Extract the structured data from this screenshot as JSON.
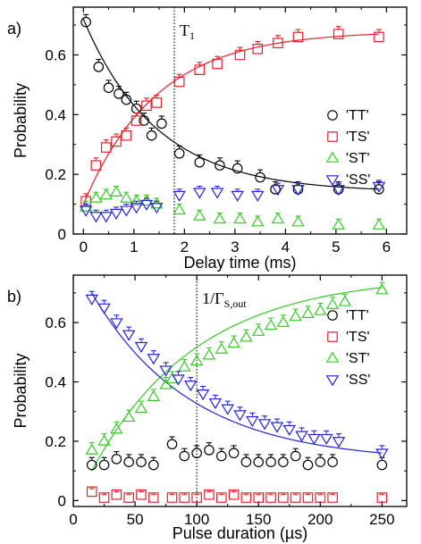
{
  "figure": {
    "panels": [
      "a)",
      "b)"
    ]
  },
  "colors": {
    "TT": "#000000",
    "TS": "#e8202a",
    "ST": "#33cc22",
    "SS": "#2222dd",
    "vline": "#000000"
  },
  "chart_data": [
    {
      "type": "scatter",
      "panel_label": "a)",
      "xlabel": "Delay time (ms)",
      "ylabel": "Probability",
      "xlim": [
        -0.2,
        6.4
      ],
      "ylim": [
        0,
        0.76
      ],
      "xticks": [
        0,
        1,
        2,
        3,
        4,
        5,
        6
      ],
      "yticks": [
        0,
        0.2,
        0.4,
        0.6
      ],
      "ytick_labels": [
        "0",
        "0.2",
        "0.4",
        "0.6"
      ],
      "grid": false,
      "legend_position": "center-right",
      "annotation": {
        "text": "T",
        "sub": "1",
        "x": 1.8
      },
      "series": [
        {
          "name": "'TT'",
          "marker": "circle",
          "color_key": "TT",
          "x": [
            0.05,
            0.3,
            0.5,
            0.7,
            0.85,
            1.05,
            1.2,
            1.35,
            1.55,
            1.9,
            2.3,
            2.7,
            3.05,
            3.5,
            3.8,
            4.25,
            5.05,
            5.85
          ],
          "y": [
            0.71,
            0.56,
            0.49,
            0.47,
            0.45,
            0.42,
            0.38,
            0.33,
            0.37,
            0.27,
            0.24,
            0.23,
            0.22,
            0.19,
            0.15,
            0.15,
            0.15,
            0.15
          ],
          "err": 0.025,
          "fit": {
            "type": "exp",
            "y0": 0.72,
            "yinf": 0.14,
            "tau": 1.45
          }
        },
        {
          "name": "'TS'",
          "marker": "square",
          "color_key": "TS",
          "x": [
            0.05,
            0.25,
            0.45,
            0.65,
            0.85,
            1.05,
            1.25,
            1.45,
            1.9,
            2.3,
            2.65,
            3.1,
            3.45,
            3.85,
            4.25,
            5.05,
            5.85
          ],
          "y": [
            0.11,
            0.23,
            0.29,
            0.31,
            0.33,
            0.38,
            0.43,
            0.44,
            0.51,
            0.55,
            0.57,
            0.6,
            0.62,
            0.64,
            0.66,
            0.67,
            0.66
          ],
          "err": 0.025,
          "fit": {
            "type": "exp",
            "y0": 0.1,
            "yinf": 0.68,
            "tau": 1.45
          }
        },
        {
          "name": "'ST'",
          "marker": "triangle-up",
          "color_key": "ST",
          "x": [
            0.05,
            0.25,
            0.45,
            0.65,
            0.85,
            1.05,
            1.25,
            1.45,
            1.9,
            2.3,
            2.7,
            3.1,
            3.45,
            3.85,
            4.25,
            5.05,
            5.85
          ],
          "y": [
            0.09,
            0.12,
            0.13,
            0.14,
            0.12,
            0.11,
            0.11,
            0.1,
            0.08,
            0.06,
            0.05,
            0.05,
            0.04,
            0.05,
            0.04,
            0.03,
            0.03
          ],
          "err": 0.02
        },
        {
          "name": "'SS'",
          "marker": "triangle-down",
          "color_key": "SS",
          "x": [
            0.05,
            0.25,
            0.45,
            0.65,
            0.85,
            1.05,
            1.25,
            1.45,
            1.9,
            2.3,
            2.65,
            3.05,
            3.45,
            3.85,
            4.25,
            5.05,
            5.85
          ],
          "y": [
            0.08,
            0.06,
            0.06,
            0.07,
            0.08,
            0.09,
            0.1,
            0.09,
            0.13,
            0.14,
            0.14,
            0.13,
            0.13,
            0.15,
            0.15,
            0.15,
            0.16
          ],
          "err": 0.02
        }
      ]
    },
    {
      "type": "scatter",
      "panel_label": "b)",
      "xlabel": "Pulse duration (µs)",
      "ylabel": "Probability",
      "xlim": [
        0,
        270
      ],
      "ylim": [
        -0.02,
        0.76
      ],
      "xticks": [
        0,
        50,
        100,
        150,
        200,
        250
      ],
      "yticks": [
        0,
        0.2,
        0.4,
        0.6
      ],
      "ytick_labels": [
        "0",
        "0.2",
        "0.4",
        "0.6"
      ],
      "grid": false,
      "legend_position": "center-right",
      "annotation": {
        "text": "1/Γ",
        "sub": "S,out",
        "x": 100
      },
      "series": [
        {
          "name": "'TT'",
          "marker": "circle",
          "color_key": "TT",
          "x": [
            15,
            25,
            35,
            45,
            55,
            65,
            80,
            90,
            100,
            110,
            120,
            130,
            140,
            150,
            160,
            170,
            180,
            190,
            200,
            210,
            250
          ],
          "y": [
            0.12,
            0.12,
            0.14,
            0.13,
            0.13,
            0.12,
            0.19,
            0.15,
            0.16,
            0.17,
            0.15,
            0.16,
            0.13,
            0.13,
            0.13,
            0.13,
            0.15,
            0.12,
            0.13,
            0.13,
            0.12
          ],
          "err": 0.025
        },
        {
          "name": "'TS'",
          "marker": "square",
          "color_key": "TS",
          "x": [
            15,
            25,
            35,
            45,
            55,
            65,
            80,
            90,
            100,
            110,
            120,
            130,
            140,
            150,
            160,
            170,
            180,
            190,
            200,
            210,
            250
          ],
          "y": [
            0.03,
            0.01,
            0.02,
            0.01,
            0.02,
            0.01,
            0.01,
            0.01,
            0.01,
            0.02,
            0.01,
            0.02,
            0.01,
            0.01,
            0.01,
            0.01,
            0.01,
            0.01,
            0.01,
            0.01,
            0.01
          ],
          "err": 0.01
        },
        {
          "name": "'ST'",
          "marker": "triangle-up",
          "color_key": "ST",
          "x": [
            15,
            25,
            35,
            45,
            55,
            65,
            75,
            80,
            90,
            100,
            110,
            120,
            130,
            140,
            150,
            160,
            170,
            180,
            190,
            200,
            210,
            220,
            250
          ],
          "y": [
            0.17,
            0.2,
            0.24,
            0.28,
            0.31,
            0.35,
            0.39,
            0.41,
            0.45,
            0.47,
            0.49,
            0.51,
            0.53,
            0.55,
            0.57,
            0.59,
            0.6,
            0.62,
            0.63,
            0.64,
            0.66,
            0.67,
            0.71
          ],
          "err": 0.025,
          "fit": {
            "type": "exp",
            "y0": 0.1,
            "yinf": 0.76,
            "tau": 85,
            "x0": 15
          }
        },
        {
          "name": "'SS'",
          "marker": "triangle-down",
          "color_key": "SS",
          "x": [
            15,
            25,
            35,
            45,
            55,
            65,
            75,
            85,
            95,
            105,
            115,
            125,
            135,
            145,
            155,
            165,
            175,
            185,
            195,
            205,
            215,
            250
          ],
          "y": [
            0.68,
            0.65,
            0.6,
            0.56,
            0.52,
            0.48,
            0.44,
            0.41,
            0.39,
            0.36,
            0.33,
            0.31,
            0.29,
            0.27,
            0.26,
            0.25,
            0.24,
            0.22,
            0.21,
            0.21,
            0.2,
            0.16
          ],
          "err": 0.025,
          "fit": {
            "type": "exp",
            "y0": 0.7,
            "yinf": 0.13,
            "tau": 80,
            "x0": 15
          }
        }
      ]
    }
  ]
}
